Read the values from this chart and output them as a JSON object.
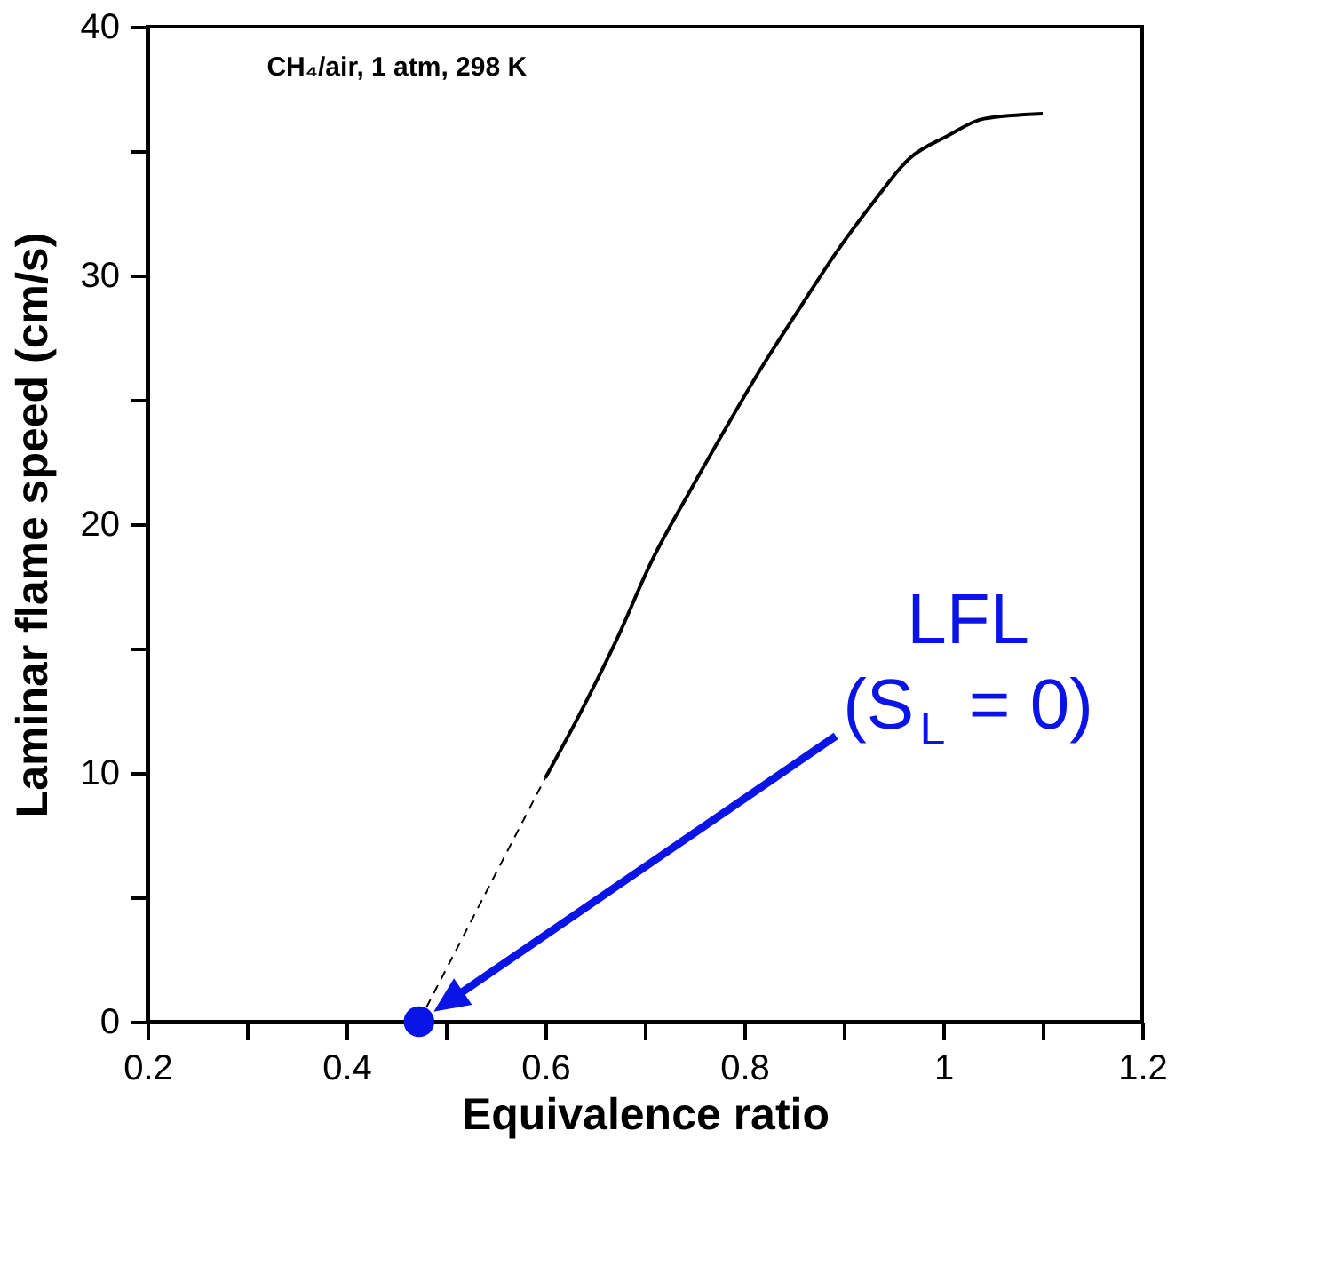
{
  "chart_data": {
    "type": "line",
    "xlabel": "Equivalence ratio",
    "ylabel": "Laminar flame speed (cm/s)",
    "annotations": [
      "CH₄/air, 1 atm, 298 K",
      "LFL\n(S$_{L}$ = 0)"
    ],
    "series": [
      {
        "type": "line",
        "color": "#000000",
        "line_style": "solid",
        "x": [
          0.6,
          0.635,
          0.671,
          0.708,
          0.745,
          0.782,
          0.819,
          0.856,
          0.892,
          0.929,
          0.966,
          1.004,
          1.041,
          1.1
        ],
        "values": [
          9.8,
          12.4,
          15.3,
          18.6,
          21.3,
          23.9,
          26.4,
          28.7,
          30.9,
          32.9,
          34.7,
          35.6,
          36.3,
          36.5
        ]
      },
      {
        "type": "line",
        "color": "#000000",
        "line_style": "dashed",
        "x": [
          0.473,
          0.6
        ],
        "values": [
          0,
          9.8
        ]
      },
      {
        "type": "scatter",
        "color": "#0a14e6",
        "marker": "circle",
        "x": [
          0.473
        ],
        "values": [
          0
        ]
      }
    ],
    "xlim": [
      0.2,
      1.2
    ],
    "ylim": [
      0,
      40
    ],
    "xticks": [
      0.2,
      {
        "value": 0.3,
        "label": null
      },
      0.4,
      {
        "value": 0.5,
        "label": null
      },
      0.6,
      {
        "value": 0.7,
        "label": null
      },
      0.8,
      {
        "value": 0.9,
        "label": null
      },
      1,
      {
        "value": 1.1,
        "label": null
      },
      1.2
    ],
    "yticks": [
      0,
      {
        "value": 5,
        "label": null
      },
      10,
      {
        "value": 15,
        "label": null
      },
      20,
      {
        "value": 25,
        "label": null
      },
      30,
      {
        "value": 35,
        "label": null
      },
      40
    ],
    "grid": false
  }
}
